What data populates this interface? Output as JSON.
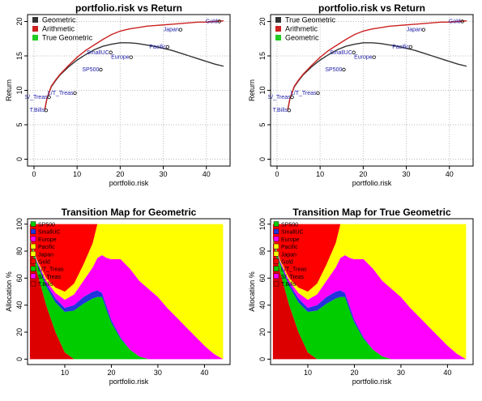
{
  "chart_data": [
    {
      "type": "line",
      "title": "portfolio.risk vs Return",
      "xlabel": "portfolio.risk",
      "ylabel": "Return",
      "xlim": [
        -1.5,
        45.5
      ],
      "ylim": [
        -1,
        21
      ],
      "xticks": [
        "0",
        "10",
        "20",
        "30",
        "40"
      ],
      "yticks": [
        "0",
        "5",
        "10",
        "15",
        "20"
      ],
      "grid": true,
      "legend_position": "top-left",
      "series": [
        {
          "name": "Geometric",
          "color": "#333333",
          "x": [
            2.5,
            3,
            4,
            5,
            6,
            8,
            10,
            12,
            14,
            16,
            18,
            20,
            22,
            24,
            26,
            28,
            30,
            32,
            34,
            36,
            38,
            40,
            42,
            44
          ],
          "y": [
            7.2,
            8.8,
            10.5,
            11.4,
            12.2,
            13.4,
            14.4,
            15.2,
            15.9,
            16.4,
            16.7,
            16.9,
            16.9,
            16.8,
            16.6,
            16.4,
            16.1,
            15.8,
            15.4,
            15.0,
            14.6,
            14.2,
            13.8,
            13.5
          ]
        },
        {
          "name": "Arithmetic",
          "color": "#cc2222",
          "x": [
            2.5,
            3,
            4,
            5,
            6,
            8,
            10,
            12,
            14,
            16,
            18,
            20,
            22,
            24,
            26,
            28,
            30,
            32,
            34,
            36,
            38,
            40,
            42,
            44
          ],
          "y": [
            7.2,
            8.8,
            10.6,
            11.5,
            12.3,
            13.6,
            14.8,
            15.8,
            16.6,
            17.4,
            18.1,
            18.6,
            18.9,
            19.1,
            19.3,
            19.4,
            19.5,
            19.6,
            19.7,
            19.8,
            19.9,
            19.9,
            20.0,
            20.1
          ]
        },
        {
          "name": "True Geometric",
          "color": "#22cc22",
          "x": [],
          "y": []
        }
      ],
      "points": [
        {
          "label": "T.Bills",
          "x": 2.8,
          "y": 7.1
        },
        {
          "label": "S/_Treas",
          "x": 3.5,
          "y": 9.0
        },
        {
          "label": "L/T_Treas",
          "x": 9.5,
          "y": 9.6
        },
        {
          "label": "SP500",
          "x": 15.5,
          "y": 13.0
        },
        {
          "label": "SmallUC",
          "x": 17.8,
          "y": 15.5
        },
        {
          "label": "Europe",
          "x": 22.5,
          "y": 14.8
        },
        {
          "label": "Pacific",
          "x": 31.0,
          "y": 16.3
        },
        {
          "label": "Japan",
          "x": 34.0,
          "y": 18.8
        },
        {
          "label": "Gold",
          "x": 43.0,
          "y": 20.0
        }
      ]
    },
    {
      "type": "line",
      "title": "portfolio.risk vs Return",
      "xlabel": "portfolio.risk",
      "ylabel": "Return",
      "xlim": [
        -1.5,
        45.5
      ],
      "ylim": [
        -1,
        21
      ],
      "xticks": [
        "0",
        "10",
        "20",
        "30",
        "40"
      ],
      "yticks": [
        "0",
        "5",
        "10",
        "15",
        "20"
      ],
      "grid": true,
      "legend_position": "top-left",
      "series": [
        {
          "name": "True Geometric",
          "color": "#333333",
          "x": [
            2.5,
            3,
            4,
            5,
            6,
            8,
            10,
            12,
            14,
            16,
            18,
            20,
            22,
            24,
            26,
            28,
            30,
            32,
            34,
            36,
            38,
            40,
            42,
            44
          ],
          "y": [
            7.2,
            8.8,
            10.5,
            11.4,
            12.2,
            13.4,
            14.4,
            15.2,
            15.9,
            16.4,
            16.7,
            16.9,
            16.9,
            16.8,
            16.6,
            16.4,
            16.1,
            15.8,
            15.4,
            15.0,
            14.6,
            14.2,
            13.8,
            13.5
          ]
        },
        {
          "name": "Arithmetic",
          "color": "#cc2222",
          "x": [
            2.5,
            3,
            4,
            5,
            6,
            8,
            10,
            12,
            14,
            16,
            18,
            20,
            22,
            24,
            26,
            28,
            30,
            32,
            34,
            36,
            38,
            40,
            42,
            44
          ],
          "y": [
            7.2,
            8.8,
            10.6,
            11.5,
            12.3,
            13.6,
            14.8,
            15.8,
            16.6,
            17.4,
            18.1,
            18.6,
            18.9,
            19.1,
            19.3,
            19.4,
            19.5,
            19.6,
            19.7,
            19.8,
            19.9,
            19.9,
            20.0,
            20.1
          ]
        },
        {
          "name": "Geometric",
          "color": "#22cc22",
          "x": [],
          "y": []
        }
      ],
      "points": [
        {
          "label": "T.Bills",
          "x": 2.8,
          "y": 7.1
        },
        {
          "label": "S/_Treas",
          "x": 3.5,
          "y": 9.0
        },
        {
          "label": "L/T_Treas",
          "x": 9.5,
          "y": 9.6
        },
        {
          "label": "SP500",
          "x": 15.5,
          "y": 13.0
        },
        {
          "label": "SmallUC",
          "x": 17.8,
          "y": 15.5
        },
        {
          "label": "Europe",
          "x": 22.5,
          "y": 14.8
        },
        {
          "label": "Pacific",
          "x": 31.0,
          "y": 16.3
        },
        {
          "label": "Japan",
          "x": 34.0,
          "y": 18.8
        },
        {
          "label": "Gold",
          "x": 43.0,
          "y": 20.0
        }
      ]
    },
    {
      "type": "area",
      "title": "Transition Map for Geometric",
      "xlabel": "portfolio.risk",
      "ylabel": "Allocation %",
      "xlim": [
        2,
        45.5
      ],
      "ylim": [
        -4,
        104
      ],
      "xticks": [
        "10",
        "20",
        "30",
        "40"
      ],
      "yticks": [
        "0",
        "20",
        "40",
        "60",
        "80",
        "100"
      ],
      "legend_position": "top-left",
      "x": [
        2.5,
        4,
        6,
        8,
        10,
        12,
        14,
        16,
        17,
        18,
        19,
        20,
        22,
        24,
        26,
        28,
        30,
        32,
        34,
        36,
        38,
        40,
        42,
        44
      ],
      "series": [
        {
          "name": "T.Bills",
          "color": "#dd0000",
          "values": [
            88,
            65,
            40,
            20,
            5,
            0,
            0,
            0,
            0,
            0,
            0,
            0,
            0,
            0,
            0,
            0,
            0,
            0,
            0,
            0,
            0,
            0,
            0,
            0
          ]
        },
        {
          "name": "S/_Treas",
          "color": "#ff00ff",
          "values": [
            0,
            0,
            0,
            0,
            0,
            0,
            0,
            0,
            0,
            0,
            0,
            0,
            0,
            0,
            0,
            0,
            0,
            0,
            0,
            0,
            0,
            0,
            0,
            0
          ]
        },
        {
          "name": "L/T_Treas",
          "color": "#00cc00",
          "values": [
            0,
            0,
            0,
            0,
            0,
            0,
            0,
            0,
            0,
            0,
            0,
            0,
            0,
            0,
            0,
            0,
            0,
            0,
            0,
            0,
            0,
            0,
            0,
            0
          ]
        },
        {
          "name": "SP500",
          "color": "#00cc00",
          "values": [
            1,
            6,
            14,
            22,
            30,
            36,
            41,
            45,
            46,
            46,
            36,
            27,
            15,
            7,
            2,
            0,
            0,
            0,
            0,
            0,
            0,
            0,
            0,
            0
          ]
        },
        {
          "name": "SmallUC",
          "color": "#2233dd",
          "values": [
            0,
            1,
            2,
            3,
            3,
            4,
            5,
            5,
            5,
            3,
            3,
            2,
            1,
            0,
            0,
            0,
            0,
            0,
            0,
            0,
            0,
            0,
            0,
            0
          ]
        },
        {
          "name": "Europe",
          "color": "#ff00ff",
          "values": [
            0,
            1,
            2,
            4,
            6,
            8,
            12,
            18,
            24,
            28,
            36,
            45,
            58,
            60,
            56,
            52,
            46,
            38,
            31,
            24,
            17,
            10,
            4,
            0
          ]
        },
        {
          "name": "Pacific",
          "color": "#ffff00",
          "values": [
            0,
            1,
            2,
            4,
            6,
            8,
            12,
            18,
            25,
            23,
            25,
            26,
            26,
            33,
            42,
            48,
            54,
            62,
            69,
            76,
            83,
            90,
            96,
            100
          ]
        },
        {
          "name": "Japan",
          "color": "#ffff00",
          "values": [
            0,
            0,
            0,
            0,
            0,
            0,
            0,
            0,
            0,
            0,
            0,
            0,
            0,
            0,
            0,
            0,
            0,
            0,
            0,
            0,
            0,
            0,
            0,
            0
          ]
        },
        {
          "name": "Gold",
          "color": "#ff0000",
          "values": [
            11,
            26,
            40,
            47,
            50,
            44,
            30,
            14,
            0,
            0,
            0,
            0,
            0,
            0,
            0,
            0,
            0,
            0,
            0,
            0,
            0,
            0,
            0,
            0
          ]
        }
      ],
      "legend_labels": [
        "SP500",
        "SmallUC",
        "Europe",
        "Pacific",
        "Japan",
        "Gold",
        "L/T_Treas",
        "S/_Treas",
        "T.Bills"
      ]
    },
    {
      "type": "area",
      "title": "Transition Map for True Geometric",
      "xlabel": "portfolio.risk",
      "ylabel": "Allocation %",
      "xlim": [
        2,
        45.5
      ],
      "ylim": [
        -4,
        104
      ],
      "xticks": [
        "10",
        "20",
        "30",
        "40"
      ],
      "yticks": [
        "0",
        "20",
        "40",
        "60",
        "80",
        "100"
      ],
      "legend_position": "top-left",
      "x": [
        2.5,
        4,
        6,
        8,
        10,
        12,
        14,
        16,
        17,
        18,
        19,
        20,
        22,
        24,
        26,
        28,
        30,
        32,
        34,
        36,
        38,
        40,
        42,
        44
      ],
      "series": [
        {
          "name": "T.Bills",
          "color": "#dd0000",
          "values": [
            88,
            65,
            40,
            20,
            5,
            0,
            0,
            0,
            0,
            0,
            0,
            0,
            0,
            0,
            0,
            0,
            0,
            0,
            0,
            0,
            0,
            0,
            0,
            0
          ]
        },
        {
          "name": "S/_Treas",
          "color": "#ff00ff",
          "values": [
            0,
            0,
            0,
            0,
            0,
            0,
            0,
            0,
            0,
            0,
            0,
            0,
            0,
            0,
            0,
            0,
            0,
            0,
            0,
            0,
            0,
            0,
            0,
            0
          ]
        },
        {
          "name": "L/T_Treas",
          "color": "#00cc00",
          "values": [
            0,
            0,
            0,
            0,
            0,
            0,
            0,
            0,
            0,
            0,
            0,
            0,
            0,
            0,
            0,
            0,
            0,
            0,
            0,
            0,
            0,
            0,
            0,
            0
          ]
        },
        {
          "name": "SP500",
          "color": "#00cc00",
          "values": [
            1,
            6,
            14,
            22,
            30,
            36,
            41,
            45,
            46,
            46,
            36,
            27,
            15,
            7,
            2,
            0,
            0,
            0,
            0,
            0,
            0,
            0,
            0,
            0
          ]
        },
        {
          "name": "SmallUC",
          "color": "#2233dd",
          "values": [
            0,
            1,
            2,
            3,
            3,
            4,
            5,
            5,
            5,
            3,
            3,
            2,
            1,
            0,
            0,
            0,
            0,
            0,
            0,
            0,
            0,
            0,
            0,
            0
          ]
        },
        {
          "name": "Europe",
          "color": "#ff00ff",
          "values": [
            0,
            1,
            2,
            4,
            6,
            8,
            12,
            18,
            24,
            28,
            36,
            45,
            58,
            60,
            56,
            52,
            46,
            38,
            31,
            24,
            17,
            10,
            4,
            0
          ]
        },
        {
          "name": "Pacific",
          "color": "#ffff00",
          "values": [
            0,
            1,
            2,
            4,
            6,
            8,
            12,
            18,
            25,
            23,
            25,
            26,
            26,
            33,
            42,
            48,
            54,
            62,
            69,
            76,
            83,
            90,
            96,
            100
          ]
        },
        {
          "name": "Japan",
          "color": "#ffff00",
          "values": [
            0,
            0,
            0,
            0,
            0,
            0,
            0,
            0,
            0,
            0,
            0,
            0,
            0,
            0,
            0,
            0,
            0,
            0,
            0,
            0,
            0,
            0,
            0,
            0
          ]
        },
        {
          "name": "Gold",
          "color": "#ff0000",
          "values": [
            11,
            26,
            40,
            47,
            50,
            44,
            30,
            14,
            0,
            0,
            0,
            0,
            0,
            0,
            0,
            0,
            0,
            0,
            0,
            0,
            0,
            0,
            0,
            0
          ]
        }
      ],
      "legend_labels": [
        "SP500",
        "SmallUC",
        "Europe",
        "Pacific",
        "Japan",
        "Gold",
        "L/T_Treas",
        "S/_Treas",
        "T.Bills"
      ]
    }
  ]
}
